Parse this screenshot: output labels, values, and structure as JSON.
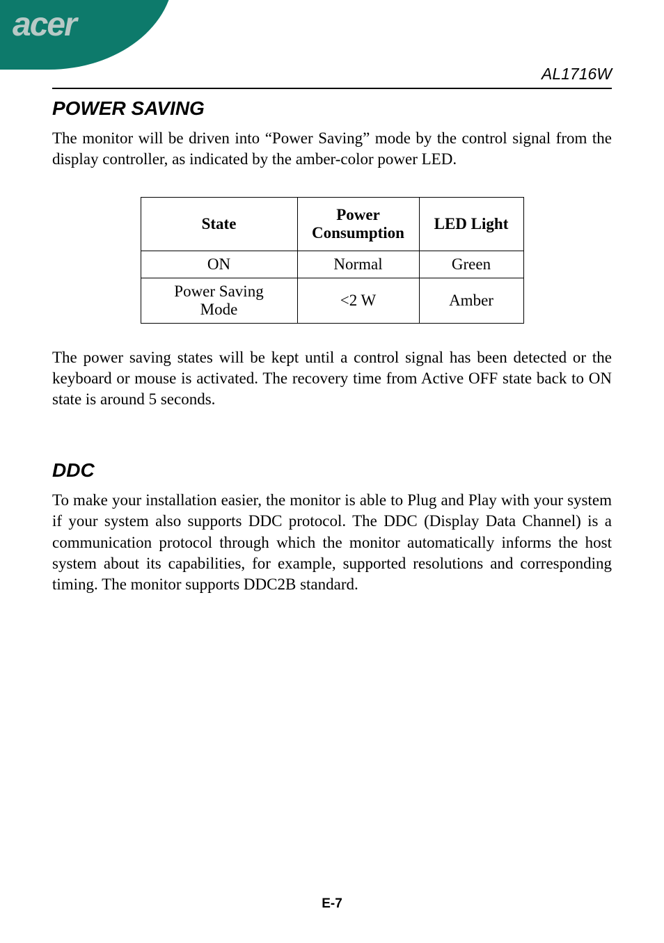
{
  "header": {
    "logo_text": "acer",
    "model_number": "AL1716W"
  },
  "section1": {
    "title": "POWER SAVING",
    "paragraph1": "The monitor will be driven into “Power Saving” mode by the control signal from the display controller, as indicated by the amber-color power LED.",
    "table": {
      "headers": {
        "state": "State",
        "power": "Power Consumption",
        "led": "LED Light"
      },
      "rows": [
        {
          "state": "ON",
          "power": "Normal",
          "led": "Green"
        },
        {
          "state": "Power Saving Mode",
          "power": "<2 W",
          "led": "Amber"
        }
      ]
    },
    "paragraph2": "The power saving states will be kept until a control signal has been detected or the keyboard or mouse is activated. The recovery time from Active OFF state back to ON state is around 5 seconds."
  },
  "section2": {
    "title": "DDC",
    "paragraph1": "To make your installation easier, the monitor is able to Plug and Play with your system if your system also supports DDC protocol. The DDC (Display Data Channel) is a communication protocol through which the monitor automatically informs the host system about its capabilities, for example, supported resolutions and corresponding timing. The monitor supports DDC2B standard."
  },
  "footer": {
    "page_number": "E-7"
  }
}
